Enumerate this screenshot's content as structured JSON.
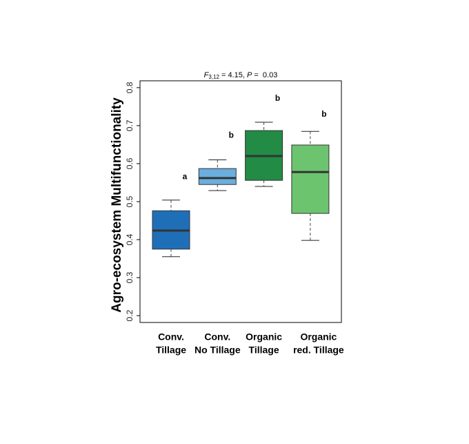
{
  "chart_data": {
    "type": "box",
    "title_parts": [
      "F",
      "3,12",
      " = 4.15, ",
      "P",
      " =  0.03"
    ],
    "y_label": "Agro-ecosystem Multifunctionality",
    "categories": [
      [
        "Conv.",
        "Tillage"
      ],
      [
        "Conv.",
        "No Tillage"
      ],
      [
        "Organic",
        "Tillage"
      ],
      [
        "Organic",
        "red. Tillage"
      ]
    ],
    "colors": [
      "#1f6fb8",
      "#6aaede",
      "#228b45",
      "#6cc46f"
    ],
    "whisker_low": [
      0.355,
      0.529,
      0.54,
      0.398
    ],
    "q1": [
      0.375,
      0.545,
      0.556,
      0.469
    ],
    "median": [
      0.424,
      0.562,
      0.62,
      0.578
    ],
    "q3": [
      0.476,
      0.587,
      0.687,
      0.649
    ],
    "whisker_high": [
      0.504,
      0.61,
      0.709,
      0.685
    ],
    "letters": [
      "a",
      "b",
      "b",
      "b"
    ],
    "letter_y": [
      0.565,
      0.674,
      0.771,
      0.729
    ],
    "ylim": [
      0.182,
      0.818
    ],
    "yticks": [
      0.2,
      0.3,
      0.4,
      0.5,
      0.6,
      0.7,
      0.8
    ]
  }
}
